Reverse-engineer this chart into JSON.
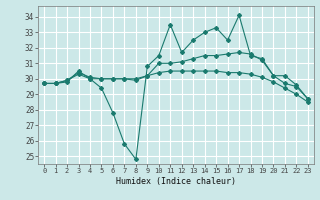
{
  "xlabel": "Humidex (Indice chaleur)",
  "bg_color": "#cce8e8",
  "grid_color": "#b8d8d8",
  "line_color": "#1a7a6e",
  "x_ticks": [
    0,
    1,
    2,
    3,
    4,
    5,
    6,
    7,
    8,
    9,
    10,
    11,
    12,
    13,
    14,
    15,
    16,
    17,
    18,
    19,
    20,
    21,
    22,
    23
  ],
  "y_ticks": [
    25,
    26,
    27,
    28,
    29,
    30,
    31,
    32,
    33,
    34
  ],
  "ylim": [
    24.5,
    34.7
  ],
  "xlim": [
    -0.5,
    23.5
  ],
  "line1": [
    29.7,
    29.7,
    29.8,
    30.5,
    30.0,
    29.4,
    27.8,
    25.8,
    24.8,
    30.8,
    31.5,
    33.5,
    31.7,
    32.5,
    33.0,
    33.3,
    32.5,
    34.1,
    31.5,
    31.3,
    30.2,
    29.7,
    29.5,
    28.7
  ],
  "line2": [
    29.7,
    29.7,
    29.9,
    30.4,
    30.1,
    30.0,
    30.0,
    30.0,
    29.9,
    30.2,
    31.0,
    31.0,
    31.1,
    31.3,
    31.5,
    31.5,
    31.6,
    31.7,
    31.6,
    31.2,
    30.2,
    30.2,
    29.6,
    28.7
  ],
  "line3": [
    29.7,
    29.7,
    29.9,
    30.3,
    30.0,
    30.0,
    30.0,
    30.0,
    30.0,
    30.2,
    30.4,
    30.5,
    30.5,
    30.5,
    30.5,
    30.5,
    30.4,
    30.4,
    30.3,
    30.1,
    29.8,
    29.4,
    29.0,
    28.5
  ]
}
